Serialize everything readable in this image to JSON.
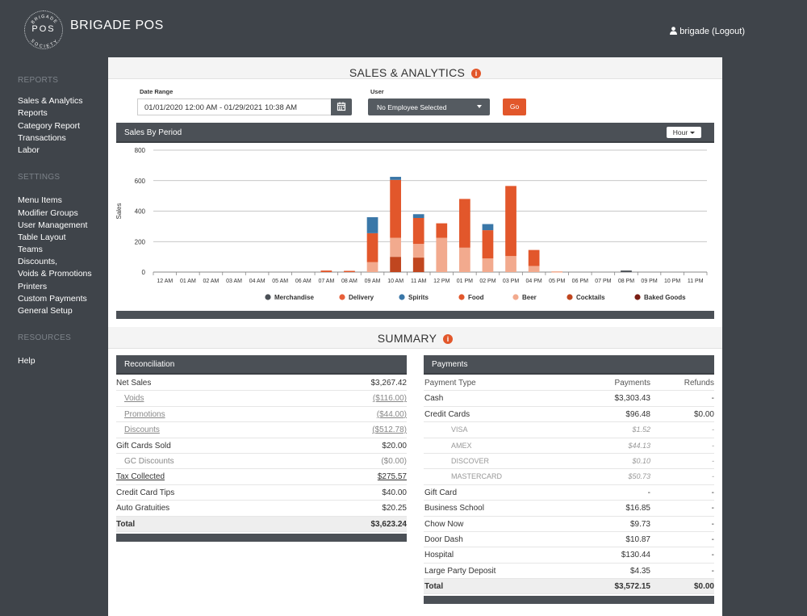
{
  "app": {
    "title": "BRIGADE POS",
    "logo_top": "BRIGADE",
    "logo_mid": "POS",
    "logo_bottom": "SOCIETY",
    "user_label": "brigade (Logout)"
  },
  "sidebar": {
    "reports_header": "REPORTS",
    "reports": [
      "Sales & Analytics",
      "Reports",
      "Category Report",
      "Transactions",
      "Labor"
    ],
    "settings_header": "SETTINGS",
    "settings": [
      "Menu Items",
      "Modifier Groups",
      "User Management",
      "Table Layout",
      "Teams",
      "Discounts,",
      "Voids & Promotions",
      "Printers",
      "Custom Payments",
      "General Setup"
    ],
    "resources_header": "RESOURCES",
    "resources": [
      "Help"
    ]
  },
  "analytics": {
    "title": "SALES & ANALYTICS",
    "date_range_label": "Date Range",
    "date_range_value": "01/01/2020 12:00 AM - 01/29/2021 10:38 AM",
    "user_label": "User",
    "user_value": "No Employee Selected",
    "go_label": "Go"
  },
  "chart_panel": {
    "title": "Sales By Period",
    "period_button": "Hour"
  },
  "chart_data": {
    "type": "bar",
    "stacked": true,
    "ylabel": "Sales",
    "ylim": [
      0,
      800
    ],
    "yticks": [
      0,
      200,
      400,
      600,
      800
    ],
    "grid": true,
    "legend_position": "bottom",
    "categories": [
      "12 AM",
      "01 AM",
      "02 AM",
      "03 AM",
      "04 AM",
      "05 AM",
      "06 AM",
      "07 AM",
      "08 AM",
      "09 AM",
      "10 AM",
      "11 AM",
      "12 PM",
      "01 PM",
      "02 PM",
      "03 PM",
      "04 PM",
      "05 PM",
      "06 PM",
      "07 PM",
      "08 PM",
      "09 PM",
      "10 PM",
      "11 PM"
    ],
    "series": [
      {
        "name": "Baked Goods",
        "color": "#7a1e14",
        "values": [
          0,
          0,
          0,
          0,
          0,
          0,
          0,
          0,
          0,
          0,
          0,
          0,
          0,
          0,
          0,
          0,
          0,
          0,
          0,
          0,
          0,
          0,
          0,
          0
        ]
      },
      {
        "name": "Cocktails",
        "color": "#c0461f",
        "values": [
          0,
          0,
          0,
          0,
          0,
          0,
          0,
          0,
          0,
          0,
          100,
          95,
          0,
          0,
          0,
          0,
          0,
          0,
          0,
          0,
          0,
          0,
          0,
          0
        ]
      },
      {
        "name": "Beer",
        "color": "#f2aa8e",
        "values": [
          0,
          0,
          0,
          0,
          0,
          0,
          0,
          0,
          0,
          65,
          125,
          90,
          225,
          160,
          90,
          105,
          40,
          5,
          0,
          0,
          0,
          0,
          0,
          0
        ]
      },
      {
        "name": "Food",
        "color": "#e2572b",
        "values": [
          0,
          0,
          0,
          0,
          0,
          0,
          0,
          10,
          8,
          190,
          380,
          170,
          95,
          320,
          185,
          460,
          105,
          0,
          0,
          0,
          0,
          0,
          0,
          0
        ]
      },
      {
        "name": "Spirits",
        "color": "#3a77a8",
        "values": [
          0,
          0,
          0,
          0,
          0,
          0,
          0,
          0,
          0,
          105,
          20,
          25,
          0,
          0,
          40,
          0,
          0,
          0,
          0,
          0,
          0,
          0,
          0,
          0
        ]
      },
      {
        "name": "Delivery",
        "color": "#e8603a",
        "values": [
          0,
          0,
          0,
          0,
          0,
          0,
          0,
          0,
          0,
          0,
          0,
          0,
          0,
          0,
          0,
          0,
          0,
          0,
          0,
          0,
          0,
          0,
          0,
          0
        ]
      },
      {
        "name": "Merchandise",
        "color": "#4b5056",
        "values": [
          0,
          0,
          0,
          0,
          0,
          0,
          0,
          0,
          0,
          0,
          0,
          0,
          0,
          0,
          0,
          0,
          0,
          0,
          0,
          0,
          10,
          0,
          0,
          0
        ]
      }
    ],
    "legend": [
      {
        "name": "Merchandise",
        "color": "#4b5056"
      },
      {
        "name": "Delivery",
        "color": "#e8603a"
      },
      {
        "name": "Spirits",
        "color": "#3a77a8"
      },
      {
        "name": "Food",
        "color": "#e2572b"
      },
      {
        "name": "Beer",
        "color": "#f2aa8e"
      },
      {
        "name": "Cocktails",
        "color": "#c0461f"
      },
      {
        "name": "Baked Goods",
        "color": "#7a1e14"
      }
    ]
  },
  "summary": {
    "title": "SUMMARY"
  },
  "reconciliation": {
    "title": "Reconciliation",
    "rows": [
      {
        "label": "Net Sales",
        "value": "$3,267.42"
      },
      {
        "label": "Voids",
        "value": "($116.00)"
      },
      {
        "label": "Promotions",
        "value": "($44.00)"
      },
      {
        "label": "Discounts",
        "value": "($512.78)"
      },
      {
        "label": "Gift Cards Sold",
        "value": "$20.00"
      },
      {
        "label": "GC Discounts",
        "value": "($0.00)"
      },
      {
        "label": "Tax Collected",
        "value": "$275.57"
      },
      {
        "label": "Credit Card Tips",
        "value": "$40.00"
      },
      {
        "label": "Auto Gratuities",
        "value": "$20.25"
      },
      {
        "label": "Total",
        "value": "$3,623.24"
      }
    ]
  },
  "payments": {
    "title": "Payments",
    "headers": [
      "Payment Type",
      "Payments",
      "Refunds"
    ],
    "rows": [
      {
        "type": "Cash",
        "payments": "$3,303.43",
        "refunds": "-"
      },
      {
        "type": "Credit Cards",
        "payments": "$96.48",
        "refunds": "$0.00"
      },
      {
        "type": "VISA",
        "payments": "$1.52",
        "refunds": "-"
      },
      {
        "type": "AMEX",
        "payments": "$44.13",
        "refunds": "-"
      },
      {
        "type": "DISCOVER",
        "payments": "$0.10",
        "refunds": "-"
      },
      {
        "type": "MASTERCARD",
        "payments": "$50.73",
        "refunds": "-"
      },
      {
        "type": "Gift Card",
        "payments": "-",
        "refunds": "-"
      },
      {
        "type": "Business School",
        "payments": "$16.85",
        "refunds": "-"
      },
      {
        "type": "Chow Now",
        "payments": "$9.73",
        "refunds": "-"
      },
      {
        "type": "Door Dash",
        "payments": "$10.87",
        "refunds": "-"
      },
      {
        "type": "Hospital",
        "payments": "$130.44",
        "refunds": "-"
      },
      {
        "type": "Large Party Deposit",
        "payments": "$4.35",
        "refunds": "-"
      },
      {
        "type": "Total",
        "payments": "$3,572.15",
        "refunds": "$0.00"
      }
    ]
  }
}
